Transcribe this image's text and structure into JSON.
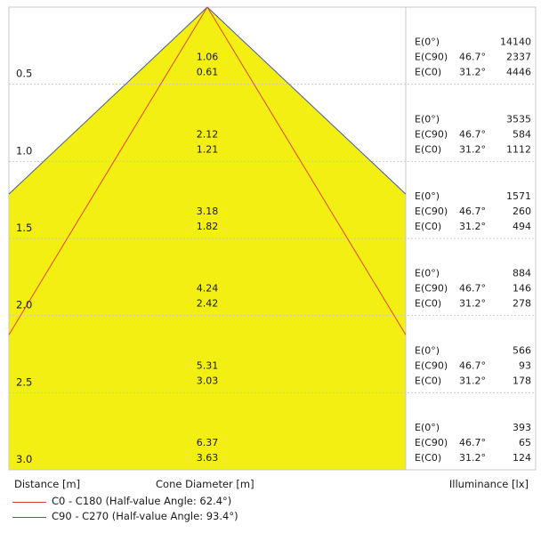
{
  "axis_labels": {
    "distance": "Distance [m]",
    "diameter": "Cone Diameter [m]",
    "illuminance": "Illuminance [lx]"
  },
  "legend": [
    {
      "label": "C0 - C180 (Half-value Angle: 62.4°)",
      "color": "#e0433a"
    },
    {
      "label": "C90 - C270 (Half-value Angle: 93.4°)",
      "color": "#4a5a9a"
    }
  ],
  "colors": {
    "cone_fill": "#f3ef12",
    "grid": "#c9c9c9"
  },
  "chart_data": {
    "type": "table",
    "half_value_angles": {
      "C0-C180": 62.4,
      "C90-C270": 93.4
    },
    "rows": [
      {
        "distance": "0.5",
        "diameter_c90": "1.06",
        "diameter_c0": "0.61",
        "e0_label": "E(0°)",
        "e0": "14140",
        "ec90_label": "E(C90)",
        "ec90_angle": "46.7°",
        "ec90": "2337",
        "ec0_label": "E(C0)",
        "ec0_angle": "31.2°",
        "ec0": "4446"
      },
      {
        "distance": "1.0",
        "diameter_c90": "2.12",
        "diameter_c0": "1.21",
        "e0_label": "E(0°)",
        "e0": "3535",
        "ec90_label": "E(C90)",
        "ec90_angle": "46.7°",
        "ec90": "584",
        "ec0_label": "E(C0)",
        "ec0_angle": "31.2°",
        "ec0": "1112"
      },
      {
        "distance": "1.5",
        "diameter_c90": "3.18",
        "diameter_c0": "1.82",
        "e0_label": "E(0°)",
        "e0": "1571",
        "ec90_label": "E(C90)",
        "ec90_angle": "46.7°",
        "ec90": "260",
        "ec0_label": "E(C0)",
        "ec0_angle": "31.2°",
        "ec0": "494"
      },
      {
        "distance": "2.0",
        "diameter_c90": "4.24",
        "diameter_c0": "2.42",
        "e0_label": "E(0°)",
        "e0": "884",
        "ec90_label": "E(C90)",
        "ec90_angle": "46.7°",
        "ec90": "146",
        "ec0_label": "E(C0)",
        "ec0_angle": "31.2°",
        "ec0": "278"
      },
      {
        "distance": "2.5",
        "diameter_c90": "5.31",
        "diameter_c0": "3.03",
        "e0_label": "E(0°)",
        "e0": "566",
        "ec90_label": "E(C90)",
        "ec90_angle": "46.7°",
        "ec90": "93",
        "ec0_label": "E(C0)",
        "ec0_angle": "31.2°",
        "ec0": "178"
      },
      {
        "distance": "3.0",
        "diameter_c90": "6.37",
        "diameter_c0": "3.63",
        "e0_label": "E(0°)",
        "e0": "393",
        "ec90_label": "E(C90)",
        "ec90_angle": "46.7°",
        "ec90": "65",
        "ec0_label": "E(C0)",
        "ec0_angle": "31.2°",
        "ec0": "124"
      }
    ]
  }
}
